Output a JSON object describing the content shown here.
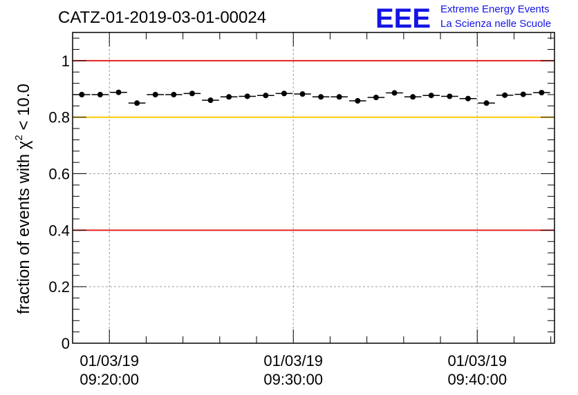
{
  "title": "CATZ-01-2019-03-01-00024",
  "logo": {
    "mark": "EEE",
    "line1": "Extreme Energy Events",
    "line2": "La Scienza nelle Scuole"
  },
  "chart_data": {
    "type": "scatter",
    "ylabel_prefix": "fraction of events with ",
    "ylabel_chi": "χ",
    "ylabel_sup": "2",
    "ylabel_suffix": " < 10.0",
    "xlim_minutes": [
      -2.0,
      24.2
    ],
    "ylim": [
      0,
      1.1
    ],
    "yticks": [
      {
        "value": 0,
        "label": "0"
      },
      {
        "value": 0.2,
        "label": "0.2"
      },
      {
        "value": 0.4,
        "label": "0.4"
      },
      {
        "value": 0.6,
        "label": "0.6"
      },
      {
        "value": 0.8,
        "label": "0.8"
      },
      {
        "value": 1,
        "label": "1"
      }
    ],
    "xticks": [
      {
        "minutes": 0,
        "line1": "01/03/19",
        "line2": "09:20:00"
      },
      {
        "minutes": 10,
        "line1": "01/03/19",
        "line2": "09:30:00"
      },
      {
        "minutes": 20,
        "line1": "01/03/19",
        "line2": "09:40:00"
      }
    ],
    "bin_width_minutes": 1.0,
    "x_start_minutes": -1.5,
    "values": [
      0.88,
      0.88,
      0.888,
      0.85,
      0.88,
      0.88,
      0.884,
      0.86,
      0.872,
      0.874,
      0.877,
      0.884,
      0.882,
      0.872,
      0.872,
      0.858,
      0.87,
      0.886,
      0.872,
      0.877,
      0.874,
      0.866,
      0.85,
      0.878,
      0.881,
      0.887
    ],
    "reference_lines": [
      {
        "value": 1.0,
        "color": "#e51f1f"
      },
      {
        "value": 0.8,
        "color": "#ffcc00"
      },
      {
        "value": 0.4,
        "color": "#e51f1f"
      }
    ],
    "grid": true
  }
}
